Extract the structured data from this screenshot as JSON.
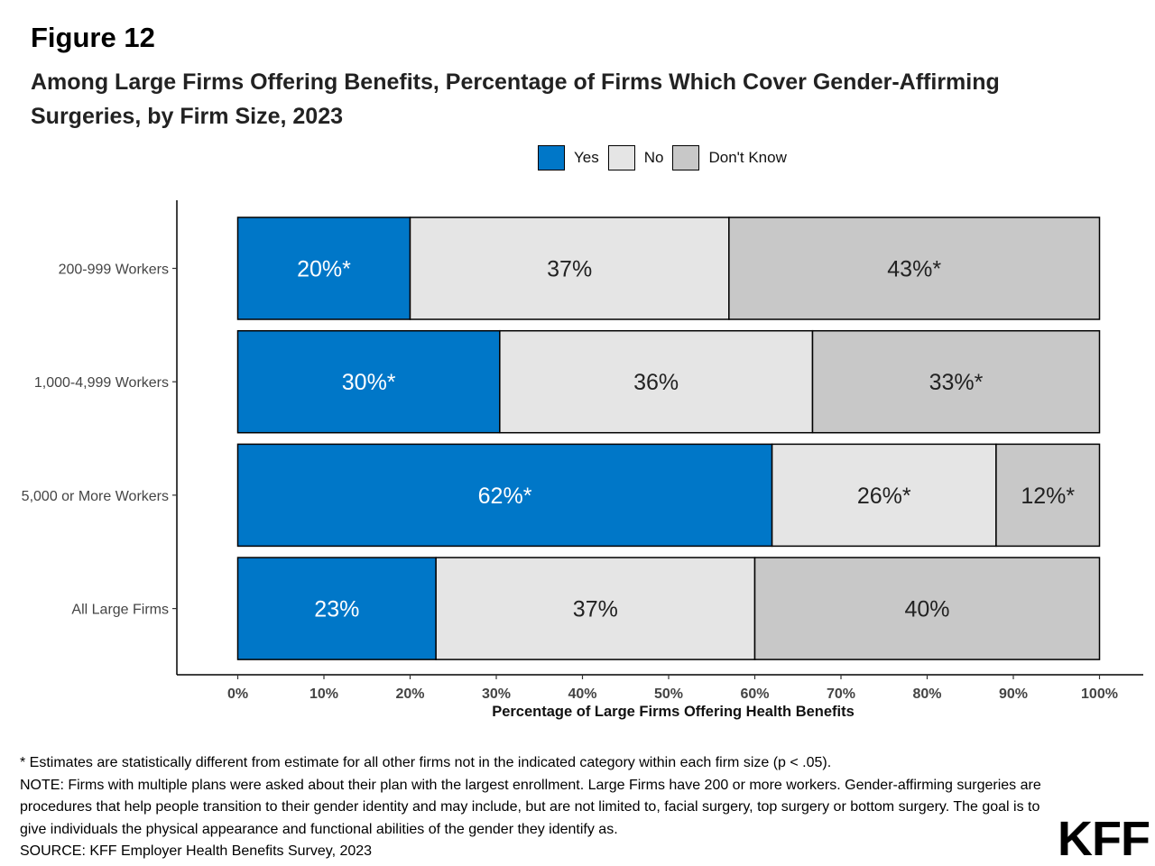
{
  "figure_label": "Figure 12",
  "title": "Among Large Firms Offering Benefits, Percentage of Firms Which Cover Gender-Affirming Surgeries, by Firm Size, 2023",
  "legend": [
    {
      "label": "Yes",
      "color": "#0077c8"
    },
    {
      "label": "No",
      "color": "#e5e5e5"
    },
    {
      "label": "Don't Know",
      "color": "#c8c8c8"
    }
  ],
  "chart_data": {
    "type": "bar",
    "orientation": "horizontal",
    "stacked": true,
    "categories": [
      "200-999 Workers",
      "1,000-4,999 Workers",
      "5,000 or More Workers",
      "All Large Firms"
    ],
    "series": [
      {
        "name": "Yes",
        "color": "#0077c8",
        "label_color": "#ffffff",
        "values": [
          20,
          30.4,
          62,
          23
        ],
        "labels": [
          "20%*",
          "30%*",
          "62%*",
          "23%"
        ]
      },
      {
        "name": "No",
        "color": "#e5e5e5",
        "label_color": "#222222",
        "values": [
          37,
          36.3,
          26,
          37
        ],
        "labels": [
          "37%",
          "36%",
          "26%*",
          "37%"
        ]
      },
      {
        "name": "Don't Know",
        "color": "#c8c8c8",
        "label_color": "#222222",
        "values": [
          43,
          33.3,
          12,
          40
        ],
        "labels": [
          "43%*",
          "33%*",
          "12%*",
          "40%"
        ]
      }
    ],
    "xlim": [
      0,
      100
    ],
    "x_ticks": [
      0,
      10,
      20,
      30,
      40,
      50,
      60,
      70,
      80,
      90,
      100
    ],
    "x_tick_labels": [
      "0%",
      "10%",
      "20%",
      "30%",
      "40%",
      "50%",
      "60%",
      "70%",
      "80%",
      "90%",
      "100%"
    ],
    "xlabel": "Percentage of Large Firms Offering Health Benefits",
    "ylabel": "",
    "legend_position": "top",
    "grid": false
  },
  "footnotes": [
    "* Estimates are statistically different from estimate for all other firms not in the indicated category within each firm size (p < .05).",
    "NOTE: Firms with multiple plans were asked about their plan with the largest enrollment.  Large Firms have 200 or more workers.  Gender-affirming surgeries are procedures that help people transition to their gender identity and may include, but are not limited to, facial surgery, top surgery or bottom surgery. The goal is to give individuals the physical appearance and functional abilities of the gender they identify as.",
    "SOURCE: KFF Employer Health Benefits Survey, 2023"
  ],
  "logo_text": "KFF"
}
